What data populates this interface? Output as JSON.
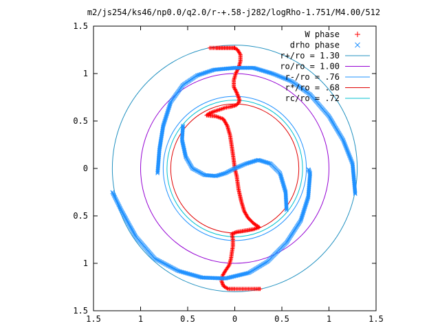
{
  "chart_data": {
    "type": "scatter",
    "title": "m2/js254/ks46/np0.0/q2.0/r-+.58-j282/logRho-1.751/M4.00/512",
    "xlim": [
      -1.5,
      1.5
    ],
    "ylim": [
      -1.5,
      1.5
    ],
    "xticks": [
      -1.5,
      -1,
      -0.5,
      0,
      0.5,
      1,
      1.5
    ],
    "yticks": [
      -1.5,
      -1,
      -0.5,
      0,
      0.5,
      1,
      1.5
    ],
    "xtick_labels": [
      "1.5",
      "1",
      "0.5",
      "0",
      "0.5",
      "1",
      "1.5"
    ],
    "ytick_labels": [
      "1.5",
      "1",
      "0.5",
      "0",
      "0.5",
      "1",
      "1.5"
    ],
    "grid": false,
    "legend_position": "top-right",
    "colors": {
      "red": "#ff0000",
      "blue": "#1e90ff",
      "purple": "#9400d3",
      "cyan": "#00c0d0",
      "tealblue": "#2090c0"
    },
    "series": [
      {
        "name": "W phase",
        "marker": "+",
        "color": "#ff0000",
        "arms": [
          {
            "x": [
              0.0,
              -0.01,
              -0.03,
              -0.06,
              -0.09,
              -0.12,
              -0.15,
              -0.17,
              -0.2,
              -0.24,
              -0.28
            ],
            "y": [
              1.27,
              1.27,
              1.27,
              1.27,
              1.27,
              1.27,
              1.27,
              1.27,
              1.27,
              1.27,
              1.27
            ]
          },
          {
            "x": [
              0.0,
              0.03,
              0.06,
              0.06,
              0.04,
              0.01,
              -0.01,
              -0.01,
              0.02,
              0.04,
              0.05,
              0.04
            ],
            "y": [
              1.27,
              1.25,
              1.2,
              1.13,
              1.06,
              1.0,
              0.93,
              0.86,
              0.8,
              0.75,
              0.72,
              0.69
            ]
          },
          {
            "x": [
              0.04,
              0.02,
              -0.01,
              -0.05,
              -0.1,
              -0.16,
              -0.22,
              -0.27,
              -0.3
            ],
            "y": [
              0.69,
              0.67,
              0.66,
              0.65,
              0.64,
              0.62,
              0.6,
              0.58,
              0.56
            ]
          },
          {
            "x": [
              -0.3,
              -0.2,
              -0.12,
              -0.08,
              -0.05,
              -0.03,
              -0.01,
              0.0,
              0.02,
              0.04,
              0.07,
              0.1,
              0.14,
              0.2,
              0.26
            ],
            "y": [
              0.56,
              0.55,
              0.52,
              0.45,
              0.35,
              0.22,
              0.08,
              0.0,
              -0.08,
              -0.22,
              -0.35,
              -0.45,
              -0.52,
              -0.58,
              -0.62
            ]
          },
          {
            "x": [
              0.26,
              0.2,
              0.14,
              0.08,
              0.02,
              -0.03
            ],
            "y": [
              -0.62,
              -0.64,
              -0.65,
              -0.66,
              -0.67,
              -0.69
            ]
          },
          {
            "x": [
              -0.03,
              -0.02,
              -0.02,
              -0.03,
              -0.04,
              -0.06,
              -0.1,
              -0.13,
              -0.14,
              -0.12,
              -0.07,
              0.0
            ],
            "y": [
              -0.69,
              -0.75,
              -0.82,
              -0.88,
              -0.95,
              -1.02,
              -1.08,
              -1.13,
              -1.19,
              -1.24,
              -1.27,
              -1.27
            ]
          },
          {
            "x": [
              0.0,
              0.04,
              0.08,
              0.12,
              0.16,
              0.2,
              0.25,
              0.28
            ],
            "y": [
              -1.27,
              -1.27,
              -1.27,
              -1.27,
              -1.27,
              -1.27,
              -1.27,
              -1.27
            ]
          }
        ]
      },
      {
        "name": "drho phase",
        "marker": "x",
        "color": "#1e90ff",
        "arms": [
          {
            "x": [
              -1.3,
              -1.2,
              -1.05,
              -0.85,
              -0.6,
              -0.35,
              -0.1,
              0.15
            ],
            "y": [
              -0.25,
              -0.45,
              -0.72,
              -0.95,
              -1.08,
              -1.15,
              -1.16,
              -1.1
            ]
          },
          {
            "x": [
              -0.82,
              -0.8,
              -0.76,
              -0.68,
              -0.55,
              -0.4,
              -0.22,
              0.0,
              0.2
            ],
            "y": [
              -0.05,
              0.2,
              0.45,
              0.7,
              0.88,
              0.98,
              1.04,
              1.06,
              1.06
            ]
          },
          {
            "x": [
              0.2,
              0.4,
              0.6,
              0.8,
              1.0,
              1.15,
              1.25,
              1.28
            ],
            "y": [
              1.06,
              1.0,
              0.92,
              0.78,
              0.55,
              0.3,
              0.05,
              -0.28
            ]
          },
          {
            "x": [
              0.15,
              0.35,
              0.55,
              0.7,
              0.78,
              0.8,
              0.78
            ],
            "y": [
              -1.1,
              -0.98,
              -0.78,
              -0.55,
              -0.3,
              -0.05,
              0.0
            ]
          },
          {
            "x": [
              -0.55,
              -0.56,
              -0.52,
              -0.45,
              -0.32,
              -0.2,
              -0.1,
              0.0,
              0.12,
              0.25,
              0.38,
              0.48,
              0.54,
              0.55
            ],
            "y": [
              0.45,
              0.3,
              0.12,
              0.0,
              -0.07,
              -0.08,
              -0.05,
              0.0,
              0.05,
              0.09,
              0.05,
              -0.05,
              -0.25,
              -0.45
            ]
          }
        ]
      }
    ],
    "circles": [
      {
        "label": "r+/ro = 1.30",
        "r": 1.3,
        "color": "#2090c0"
      },
      {
        "label": "ro/ro = 1.00",
        "r": 1.0,
        "color": "#9400d3"
      },
      {
        "label": "r-/ro = .76",
        "r": 0.76,
        "color": "#1e90ff"
      },
      {
        "label": "r*/ro = .68",
        "r": 0.68,
        "color": "#e00000"
      },
      {
        "label": "rc/ro = .72",
        "r": 0.72,
        "color": "#00c0d0"
      }
    ]
  }
}
